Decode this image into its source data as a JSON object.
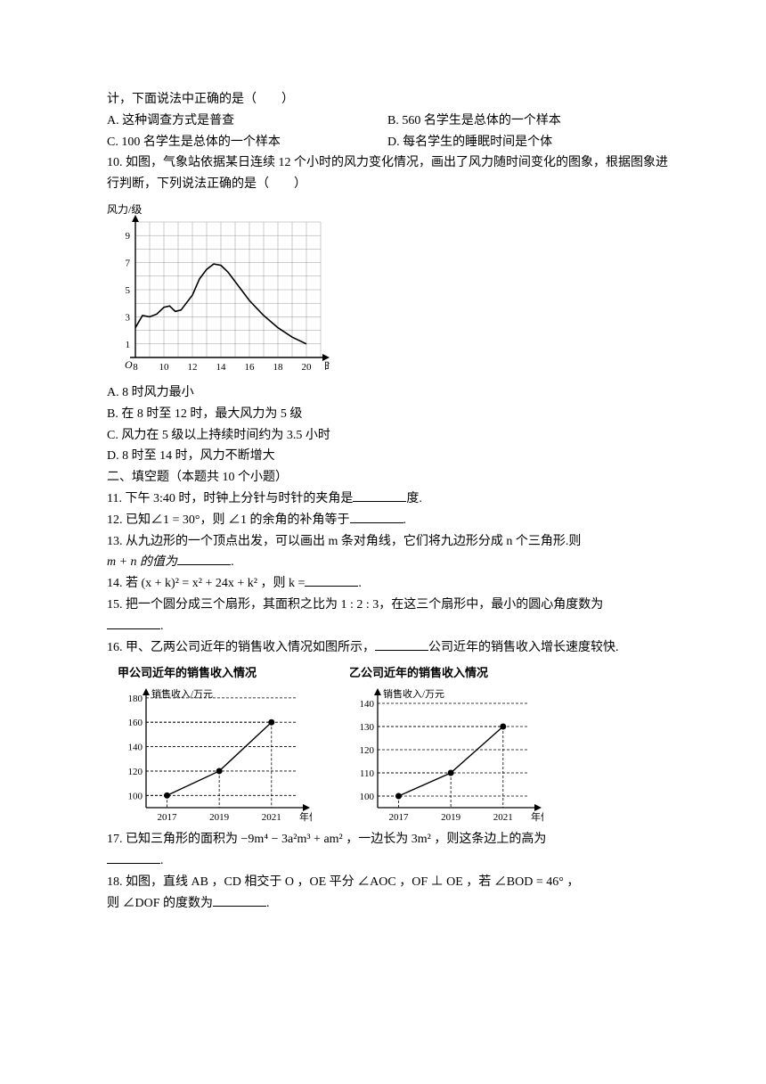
{
  "q9": {
    "stem_cont": "计，下面说法中正确的是（　　）",
    "optA": "A. 这种调查方式是普查",
    "optB": "B. 560 名学生是总体的一个样本",
    "optC": "C. 100 名学生是总体的一个样本",
    "optD": "D. 每名学生的睡眠时间是个体"
  },
  "q10": {
    "stem1": "10. 如图，气象站依据某日连续 12 个小时的风力变化情况，画出了风力随时间变化的图象，根据图象进行判断，下列说法正确的是（　　）",
    "optA": "A. 8 时风力最小",
    "optB": "B. 在 8 时至 12 时，最大风力为 5 级",
    "optC": "C. 风力在 5 级以上持续时间约为 3.5 小时",
    "optD": "D. 8 时至 14 时，风力不断增大",
    "chart": {
      "type": "line",
      "y_label": "风力/级",
      "x_label": "时间/时",
      "x_ticks": [
        8,
        10,
        12,
        14,
        16,
        18,
        20
      ],
      "y_ticks": [
        1,
        3,
        5,
        7,
        9
      ],
      "xlim": [
        8,
        21
      ],
      "ylim": [
        0,
        10
      ],
      "grid_color": "#999",
      "axis_color": "#000",
      "background_color": "#ffffff",
      "line_color": "#000",
      "line_width": 1.6,
      "points": [
        [
          8,
          2.2
        ],
        [
          8.5,
          3.1
        ],
        [
          9,
          3
        ],
        [
          9.5,
          3.2
        ],
        [
          10,
          3.7
        ],
        [
          10.4,
          3.8
        ],
        [
          10.8,
          3.4
        ],
        [
          11.2,
          3.5
        ],
        [
          12,
          4.6
        ],
        [
          12.5,
          5.8
        ],
        [
          13,
          6.5
        ],
        [
          13.5,
          6.9
        ],
        [
          14,
          6.8
        ],
        [
          14.5,
          6.3
        ],
        [
          15,
          5.6
        ],
        [
          16,
          4.2
        ],
        [
          17,
          3.1
        ],
        [
          18,
          2.2
        ],
        [
          19,
          1.5
        ],
        [
          20,
          1
        ]
      ]
    }
  },
  "section2": "二、填空题（本题共 10 个小题）",
  "q11": {
    "pre": "11. 下午 3:40 时，时钟上分针与时针的夹角是",
    "post": "度."
  },
  "q12": {
    "pre": "12. 已知∠1 = 30°，则 ∠1 的余角的补角等于",
    "post": "."
  },
  "q13": {
    "l1": "13. 从九边形的一个顶点出发，可以画出 m 条对角线，它们将九边形分成 n 个三角形.则",
    "l2_pre": "m + n 的值为",
    "l2_post": "."
  },
  "q14": {
    "pre": "14. 若 (x + k)² = x² + 24x + k² ，则 k =",
    "post": "."
  },
  "q15": {
    "l1": "15. 把一个圆分成三个扇形，其面积之比为 1 : 2 : 3，在这三个扇形中，最小的圆心角度数为",
    "l2_post": "."
  },
  "q16": {
    "pre": "16. 甲、乙两公司近年的销售收入情况如图所示，",
    "post": "公司近年的销售收入增长速度较快.",
    "chartA": {
      "type": "line",
      "title": "甲公司近年的销售收入情况",
      "y_label": "销售收入/万元",
      "x_label": "年份",
      "x_ticks": [
        2017,
        2019,
        2021
      ],
      "y_ticks": [
        100,
        120,
        140,
        160,
        180
      ],
      "ylim": [
        90,
        185
      ],
      "grid_color": "#000",
      "axis_color": "#000",
      "background_color": "#ffffff",
      "line_color": "#000",
      "line_width": 1.4,
      "marker": "circle",
      "marker_size": 3.5,
      "points": [
        [
          2017,
          100
        ],
        [
          2019,
          120
        ],
        [
          2021,
          160
        ]
      ]
    },
    "chartB": {
      "type": "line",
      "title": "乙公司近年的销售收入情况",
      "y_label": "销售收入/万元",
      "x_label": "年份",
      "x_ticks": [
        2017,
        2019,
        2021
      ],
      "y_ticks": [
        100,
        110,
        120,
        130,
        140
      ],
      "ylim": [
        95,
        145
      ],
      "grid_color": "#000",
      "axis_color": "#000",
      "background_color": "#ffffff",
      "line_color": "#000",
      "line_width": 1.4,
      "marker": "circle",
      "marker_size": 3.5,
      "points": [
        [
          2017,
          100
        ],
        [
          2019,
          110
        ],
        [
          2021,
          130
        ]
      ]
    }
  },
  "q17": {
    "l1": "17. 已知三角形的面积为 −9m⁴ − 3a²m³ + am² ，一边长为 3m² ，则这条边上的高为",
    "l2_post": "."
  },
  "q18": {
    "l1": "18. 如图，直线 AB ，CD 相交于 O ，OE 平分 ∠AOC ，OF ⊥ OE ，若 ∠BOD = 46° ，",
    "l2_pre": "则 ∠DOF 的度数为",
    "l2_post": "."
  }
}
